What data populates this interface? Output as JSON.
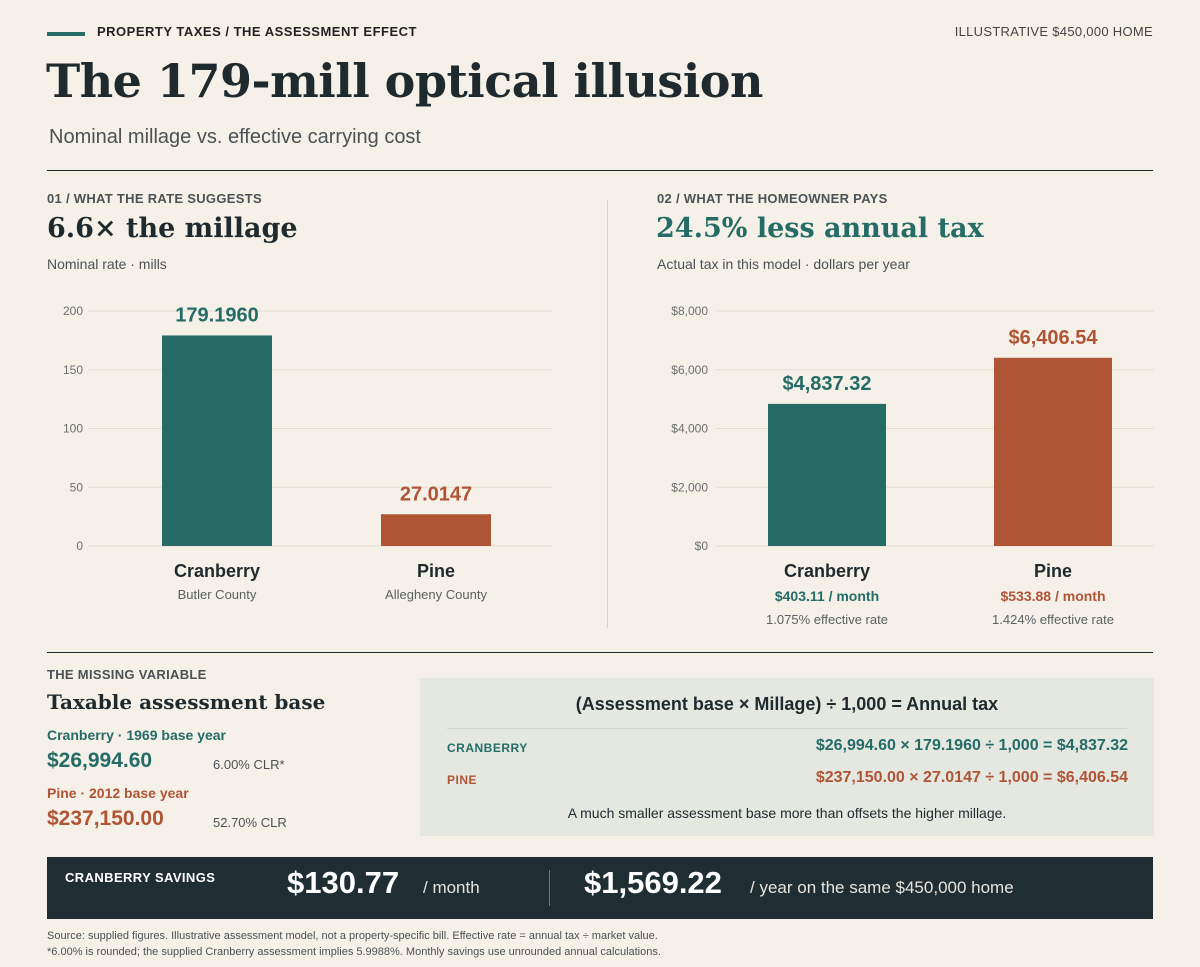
{
  "header": {
    "kicker": "PROPERTY TAXES / THE ASSESSMENT EFFECT",
    "topright": "ILLUSTRATIVE $450,000 HOME",
    "title": "The 179-mill optical illusion",
    "subtitle": "Nominal millage vs. effective carrying cost"
  },
  "colors": {
    "teal": "#256b66",
    "rust": "#b05436",
    "dark": "#1f2e33"
  },
  "panels": [
    {
      "label": "01 / WHAT THE RATE SUGGESTS",
      "headline": "6.6× the millage",
      "note": "Nominal rate · mills"
    },
    {
      "label": "02 / WHAT THE HOMEOWNER PAYS",
      "headline": "24.5% less annual tax",
      "note": "Actual tax in this model · dollars per year"
    }
  ],
  "chart_data": [
    {
      "type": "bar",
      "categories": [
        "Cranberry",
        "Pine"
      ],
      "category_notes": [
        "Butler County",
        "Allegheny County"
      ],
      "values": [
        179.196,
        27.0147
      ],
      "value_labels": [
        "179.1960",
        "27.0147"
      ],
      "ylim": [
        0,
        200
      ],
      "yticks": [
        0,
        50,
        100,
        150,
        200
      ],
      "ytick_labels": [
        "0",
        "50",
        "100",
        "150",
        "200"
      ],
      "grid": true
    },
    {
      "type": "bar",
      "categories": [
        "Cranberry",
        "Pine"
      ],
      "category_subs": [
        "$403.11 / month",
        "$533.88 / month"
      ],
      "category_notes": [
        "1.075% effective rate",
        "1.424% effective rate"
      ],
      "values": [
        4837.32,
        6406.54
      ],
      "value_labels": [
        "$4,837.32",
        "$6,406.54"
      ],
      "ylim": [
        0,
        8000
      ],
      "yticks": [
        0,
        2000,
        4000,
        6000,
        8000
      ],
      "ytick_labels": [
        "$0",
        "$2,000",
        "$4,000",
        "$6,000",
        "$8,000"
      ],
      "grid": true
    }
  ],
  "missing": {
    "label": "THE MISSING VARIABLE",
    "title": "Taxable assessment base",
    "items": [
      {
        "label": "Cranberry · 1969 base year",
        "value": "$26,994.60",
        "clr": "6.00% CLR*"
      },
      {
        "label": "Pine · 2012 base year",
        "value": "$237,150.00",
        "clr": "52.70% CLR"
      }
    ]
  },
  "formula": {
    "title": "(Assessment base × Millage) ÷ 1,000 = Annual tax",
    "rows": [
      {
        "label": "CRANBERRY",
        "eq": "$26,994.60 × 179.1960 ÷ 1,000 = $4,837.32"
      },
      {
        "label": "PINE",
        "eq": "$237,150.00 × 27.0147 ÷ 1,000 = $6,406.54"
      }
    ],
    "note": "A much smaller assessment base more than offsets the higher millage."
  },
  "savings": {
    "label": "CRANBERRY SAVINGS",
    "monthly": "$130.77",
    "monthly_unit": "/ month",
    "yearly": "$1,569.22",
    "yearly_unit": "/ year on the same $450,000 home"
  },
  "footnotes": [
    "Source: supplied figures. Illustrative assessment model, not a property-specific bill. Effective rate = annual tax ÷ market value.",
    "*6.00% is rounded; the supplied Cranberry assessment implies 5.9988%. Monthly savings use unrounded annual calculations."
  ]
}
